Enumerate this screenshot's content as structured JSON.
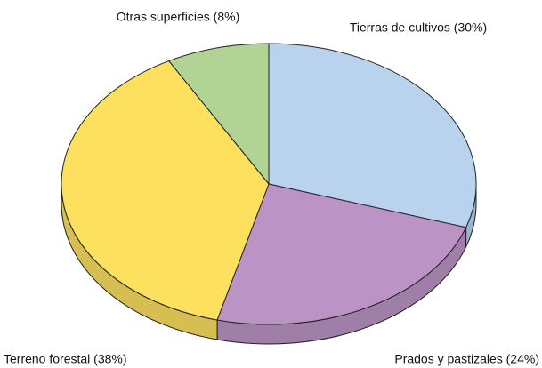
{
  "chart_data": {
    "type": "pie",
    "categories": [
      "Tierras de cultivos (30%)",
      "Prados y pastizales (24%)",
      "Terreno forestal (38%)",
      "Otras superficies (8%)"
    ],
    "values": [
      30,
      24,
      38,
      8
    ],
    "colors": [
      "#b9d3ee",
      "#bb94c5",
      "#fde05e",
      "#b1d495"
    ]
  }
}
